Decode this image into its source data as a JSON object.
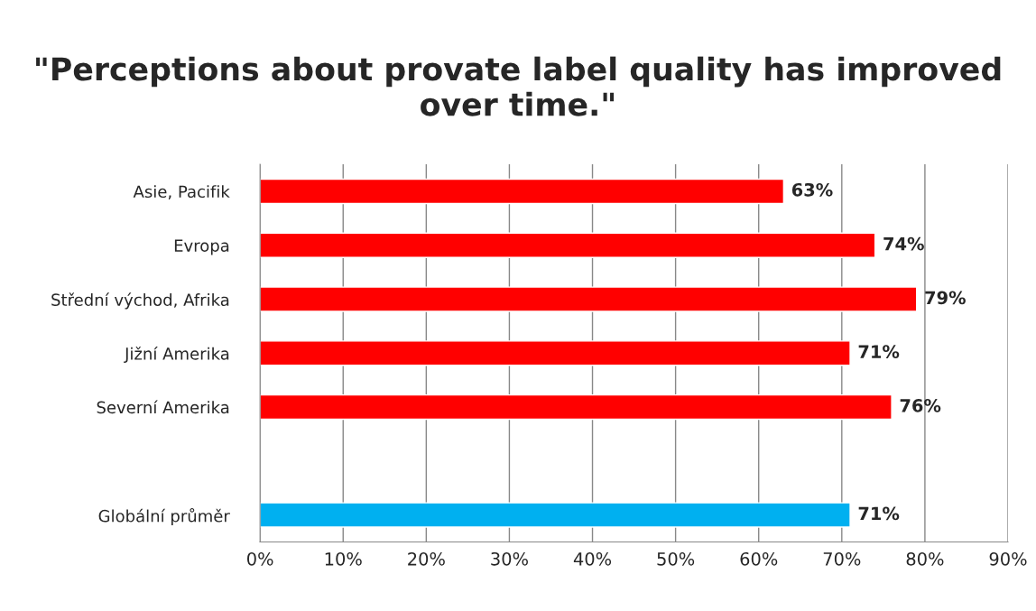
{
  "chart_data": {
    "type": "bar",
    "orientation": "horizontal",
    "title": "\"Perceptions about provate label quality has improved over time.\"",
    "categories": [
      "Asie, Pacifik",
      "Evropa",
      "Střední východ, Afrika",
      "Jižní Amerika",
      "Severní Amerika",
      null,
      "Globální průměr"
    ],
    "values": [
      63,
      74,
      79,
      71,
      76,
      null,
      71
    ],
    "colors": [
      "#ff0000",
      "#ff0000",
      "#ff0000",
      "#ff0000",
      "#ff0000",
      "#ff0000",
      "#00b0f0"
    ],
    "value_labels": [
      "63%",
      "74%",
      "79%",
      "71%",
      "76%",
      null,
      "71%"
    ],
    "xlim": [
      0,
      90
    ],
    "xticks": [
      {
        "value": 0,
        "label": "0%"
      },
      {
        "value": 10,
        "label": "10%"
      },
      {
        "value": 20,
        "label": "20%"
      },
      {
        "value": 30,
        "label": "30%"
      },
      {
        "value": 40,
        "label": "40%"
      },
      {
        "value": 50,
        "label": "50%"
      },
      {
        "value": 60,
        "label": "60%"
      },
      {
        "value": 70,
        "label": "70%"
      },
      {
        "value": 80,
        "label": "80%"
      },
      {
        "value": 90,
        "label": "90%"
      }
    ],
    "grid": "x"
  }
}
